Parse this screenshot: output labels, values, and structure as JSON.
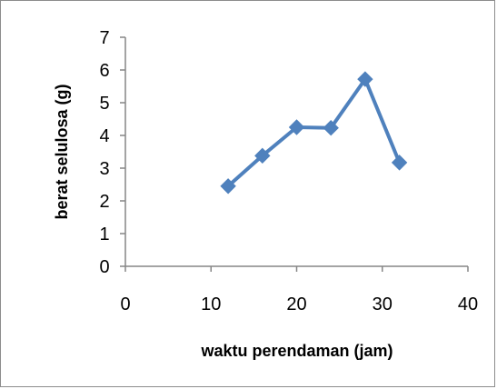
{
  "chart_data": {
    "type": "line",
    "title": "",
    "xlabel": "waktu perendaman (jam)",
    "ylabel": "berat selulosa (g)",
    "xlim": [
      0,
      40
    ],
    "ylim": [
      0,
      7
    ],
    "xticks": [
      0,
      10,
      20,
      30,
      40
    ],
    "yticks": [
      0,
      1,
      2,
      3,
      4,
      5,
      6,
      7
    ],
    "grid": false,
    "legend": "none",
    "series": [
      {
        "color": "#4f81bd",
        "marker": "diamond",
        "x": [
          12,
          16,
          20,
          24,
          28,
          32
        ],
        "y": [
          2.45,
          3.38,
          4.25,
          4.23,
          5.72,
          3.17
        ]
      }
    ]
  }
}
